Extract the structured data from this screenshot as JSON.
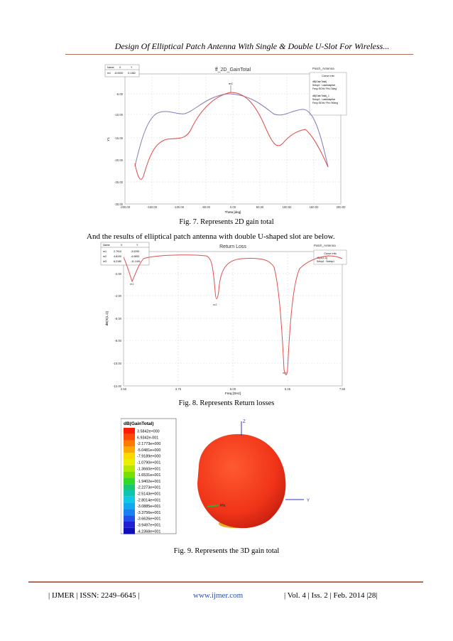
{
  "header": {
    "running_title": "Design Of Elliptical Patch Antenna With Single & Double U-Slot For Wireless..."
  },
  "fig7": {
    "caption": "Fig. 7.  Represents 2D gain total",
    "plot_title": "ff_2D_GainTotal",
    "project": "Patch_Antenna",
    "marker_table": {
      "headers": [
        "Name",
        "X",
        "Y"
      ],
      "rows": [
        [
          "m1",
          "-8.0000",
          "0.1382"
        ]
      ]
    },
    "legend_title": "Curve Info",
    "legend_items": [
      "dB(GainTotal)",
      "Setup1 : LastAdaptive",
      "Freq='5GHz' Phi='0deg'",
      "dB(GainTotal)_1",
      "Setup1 : LastAdaptive",
      "Freq='5GHz' Phi='90deg'"
    ],
    "marker_label": "m1",
    "xlabel": "Theta [deg]",
    "ylabel": "Y1",
    "x_ticks": [
      "-200.00",
      "-150.00",
      "-100.00",
      "-50.00",
      "0.00",
      "50.00",
      "100.00",
      "150.00",
      "200.00"
    ],
    "y_ticks": [
      "-5.00",
      "-10.00",
      "-15.00",
      "-20.00",
      "-25.00",
      "-30.00"
    ],
    "colors": {
      "series1": "#e04a4a",
      "series2": "#8878b8"
    }
  },
  "body": {
    "text": "And the results of elliptical patch antenna with double U-shaped slot are below."
  },
  "fig8": {
    "caption": "Fig. 8.  Represents Return losses",
    "plot_title": "Return Loss",
    "project": "Patch_Antenna",
    "marker_table": {
      "headers": [
        "Name",
        "X",
        "Y"
      ],
      "rows": [
        [
          "m1",
          "2.7910",
          "-3.0290"
        ],
        [
          "m2",
          "4.8100",
          "-4.0853"
        ],
        [
          "m3",
          "6.2180",
          "-11.1491"
        ]
      ]
    },
    "legend_title": "Curve Info",
    "legend_items": [
      "dB(S(1,1))",
      "Setup1 : Sweep1"
    ],
    "xlabel": "Freq [GHz]",
    "ylabel": "dB(S(1,1))",
    "x_ticks": [
      "2.50",
      "3.75",
      "5.00",
      "6.25",
      "7.50"
    ],
    "y_ticks": [
      "-2.00",
      "-4.00",
      "-6.00",
      "-8.00",
      "-10.00",
      "-12.00"
    ],
    "marker_labels": [
      "m1",
      "m2",
      "m3"
    ],
    "colors": {
      "series": "#e05050"
    }
  },
  "fig9": {
    "caption": "Fig. 9. Represents the 3D gain total",
    "legend_title": "dB(GainTotal)",
    "legend_values": [
      "3.5842e+000",
      "6.9342e-001",
      "-2.1773e+000",
      "-5.0481e+000",
      "-7.9189e+000",
      "-1.0790e+001",
      "-1.3660e+001",
      "-1.6531e+001",
      "-1.9402e+001",
      "-2.2273e+001",
      "-2.5143e+001",
      "-2.8014e+001",
      "-3.0885e+001",
      "-3.3756e+001",
      "-3.6626e+001",
      "-3.9497e+001",
      "-4.2368e+001"
    ],
    "legend_colors": [
      "#ff1a00",
      "#ff4a00",
      "#ff7a00",
      "#ffa800",
      "#ffd800",
      "#e8f000",
      "#b4e800",
      "#78e000",
      "#30d828",
      "#18c870",
      "#10c4b4",
      "#10c8e4",
      "#10a8f0",
      "#1880f0",
      "#2050e8",
      "#2020d8",
      "#1010b8"
    ],
    "axis_labels": [
      "Z",
      "Y",
      "Phi"
    ],
    "colors": {
      "body": "#f03418",
      "base": "#e0b020"
    }
  },
  "footer": {
    "left": "| IJMER | ISSN: 2249–6645 |",
    "center": "www.ijmer.com",
    "right": "| Vol. 4 | Iss. 2 | Feb. 2014 |28|"
  }
}
